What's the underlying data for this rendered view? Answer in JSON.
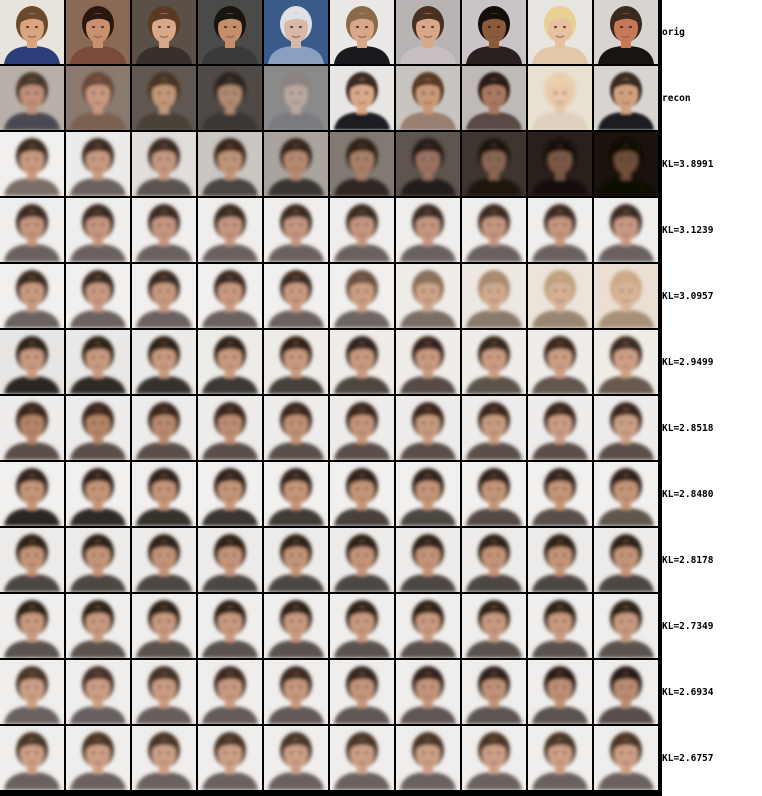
{
  "row_labels": [
    "orig",
    "recon",
    "KL=3.8991",
    "KL=3.1239",
    "KL=3.0957",
    "KL=2.9499",
    "KL=2.8518",
    "KL=2.8480",
    "KL=2.8178",
    "KL=2.7349",
    "KL=2.6934",
    "KL=2.6757"
  ],
  "rows": [
    {
      "kind": "photo",
      "tiles": [
        {
          "bg": "#e8e4dc",
          "skin": "#d9a47e",
          "hair": "#6a4a2a",
          "shirt": "#2d3f7a",
          "blur": 0
        },
        {
          "bg": "#8a6a55",
          "skin": "#c89070",
          "hair": "#2a1810",
          "shirt": "#7a4a3a",
          "blur": 0
        },
        {
          "bg": "#5a5048",
          "skin": "#d8a888",
          "hair": "#5a3a22",
          "shirt": "#3a302a",
          "blur": 0
        },
        {
          "bg": "#4a4a48",
          "skin": "#c48e6a",
          "hair": "#1a1410",
          "shirt": "#3a3a3a",
          "blur": 0
        },
        {
          "bg": "#3a5a8a",
          "skin": "#d8b8a8",
          "hair": "#e0e0e4",
          "shirt": "#8aa0c0",
          "blur": 0
        },
        {
          "bg": "#eae8e6",
          "skin": "#d8a888",
          "hair": "#8a6a48",
          "shirt": "#1a1a1e",
          "blur": 0
        },
        {
          "bg": "#b8b4b4",
          "skin": "#d8a888",
          "hair": "#4a3020",
          "shirt": "#c8c0c0",
          "blur": 0
        },
        {
          "bg": "#cac4c8",
          "skin": "#8a5a3a",
          "hair": "#140e0a",
          "shirt": "#2a2020",
          "blur": 0
        },
        {
          "bg": "#e8e4e0",
          "skin": "#e8c0a0",
          "hair": "#e8d090",
          "shirt": "#e0c8a8",
          "blur": 0
        },
        {
          "bg": "#d8d4d0",
          "skin": "#c87858",
          "hair": "#3a2a1e",
          "shirt": "#1a1410",
          "blur": 0
        }
      ]
    },
    {
      "kind": "recon",
      "tiles": [
        {
          "bg": "#b8b0a8",
          "skin": "#c09078",
          "hair": "#4a382c",
          "shirt": "#4a4a52",
          "blur": 1.6
        },
        {
          "bg": "#8a7a70",
          "skin": "#c89880",
          "hair": "#6a4a38",
          "shirt": "#7a6050",
          "blur": 1.6
        },
        {
          "bg": "#605850",
          "skin": "#c09878",
          "hair": "#4a3428",
          "shirt": "#4a4038",
          "blur": 1.6
        },
        {
          "bg": "#504a46",
          "skin": "#b08a70",
          "hair": "#2a221c",
          "shirt": "#3a3634",
          "blur": 1.8
        },
        {
          "bg": "#8a8a8a",
          "skin": "#b8a8a0",
          "hair": "#8a8280",
          "shirt": "#7a7a80",
          "blur": 1.8
        },
        {
          "bg": "#e8e6e4",
          "skin": "#d8a888",
          "hair": "#3a2a22",
          "shirt": "#1a1a22",
          "blur": 1.2
        },
        {
          "bg": "#c8c4c0",
          "skin": "#c89878",
          "hair": "#5a3a28",
          "shirt": "#9a8070",
          "blur": 1.4
        },
        {
          "bg": "#c0bab6",
          "skin": "#a87860",
          "hair": "#2a1c16",
          "shirt": "#5a4a44",
          "blur": 1.4
        },
        {
          "bg": "#e8e0d0",
          "skin": "#e8c8a8",
          "hair": "#e8d0b0",
          "shirt": "#e0d0c0",
          "blur": 1.6
        },
        {
          "bg": "#d8d4d0",
          "skin": "#d0a080",
          "hair": "#3a2c22",
          "shirt": "#1e1e24",
          "blur": 1.4
        }
      ]
    },
    {
      "kind": "sample",
      "tiles": [
        {
          "bg": "#f2f0ee",
          "skin": "#c89a80",
          "hair": "#3a2a20",
          "shirt": "#7a6e68",
          "blur": 1.8
        },
        {
          "bg": "#ecebe9",
          "skin": "#c89a80",
          "hair": "#3a2a20",
          "shirt": "#6a625e",
          "blur": 1.8
        },
        {
          "bg": "#e0ddda",
          "skin": "#c49880",
          "hair": "#3a2a20",
          "shirt": "#5a5250",
          "blur": 1.8
        },
        {
          "bg": "#cac6c2",
          "skin": "#c09478",
          "hair": "#38281e",
          "shirt": "#4a4440",
          "blur": 1.8
        },
        {
          "bg": "#aaa49e",
          "skin": "#b48a70",
          "hair": "#34261c",
          "shirt": "#3a3430",
          "blur": 1.8
        },
        {
          "bg": "#827a72",
          "skin": "#a88068",
          "hair": "#2e2218",
          "shirt": "#2e2824",
          "blur": 1.8
        },
        {
          "bg": "#5e564e",
          "skin": "#9a7260",
          "hair": "#281c14",
          "shirt": "#241e1a",
          "blur": 1.8
        },
        {
          "bg": "#3e362e",
          "skin": "#8a6652",
          "hair": "#1e1610",
          "shirt": "#1a1410",
          "blur": 1.8
        },
        {
          "bg": "#28201a",
          "skin": "#7a5844",
          "hair": "#16100a",
          "shirt": "#120e0a",
          "blur": 1.8
        },
        {
          "bg": "#1a120c",
          "skin": "#6e4e3a",
          "hair": "#0e0a06",
          "shirt": "#0a0806",
          "blur": 1.8
        }
      ]
    },
    {
      "kind": "sample",
      "tiles": [
        {
          "bg": "#f0eeec",
          "skin": "#c49680",
          "hair": "#3a2a22",
          "shirt": "#6a6260",
          "blur": 1.8
        },
        {
          "bg": "#f0eeec",
          "skin": "#c49680",
          "hair": "#3a2a22",
          "shirt": "#6a6260",
          "blur": 1.8
        },
        {
          "bg": "#f0eeec",
          "skin": "#c49680",
          "hair": "#3a2a22",
          "shirt": "#6a6260",
          "blur": 1.8
        },
        {
          "bg": "#f0eeec",
          "skin": "#c49680",
          "hair": "#3a2a22",
          "shirt": "#6a6260",
          "blur": 1.8
        },
        {
          "bg": "#f0eeec",
          "skin": "#c49680",
          "hair": "#3a2a22",
          "shirt": "#6a6260",
          "blur": 1.8
        },
        {
          "bg": "#f0eeec",
          "skin": "#c49680",
          "hair": "#3a2a22",
          "shirt": "#6a6260",
          "blur": 1.8
        },
        {
          "bg": "#f0eeec",
          "skin": "#c49680",
          "hair": "#3a2a22",
          "shirt": "#6a6260",
          "blur": 1.8
        },
        {
          "bg": "#f0eeec",
          "skin": "#c49680",
          "hair": "#3a2a22",
          "shirt": "#6a6260",
          "blur": 1.8
        },
        {
          "bg": "#f0eeec",
          "skin": "#c49680",
          "hair": "#3a2a22",
          "shirt": "#6a6260",
          "blur": 1.8
        },
        {
          "bg": "#f0eeec",
          "skin": "#c89a84",
          "hair": "#3a2a22",
          "shirt": "#6a6260",
          "blur": 1.8
        }
      ]
    },
    {
      "kind": "sample",
      "tiles": [
        {
          "bg": "#f2f0ee",
          "skin": "#c89a80",
          "hair": "#3a2a20",
          "shirt": "#6a6260",
          "blur": 1.8
        },
        {
          "bg": "#f2f0ee",
          "skin": "#c89a80",
          "hair": "#3a2a20",
          "shirt": "#6a6260",
          "blur": 1.8
        },
        {
          "bg": "#f2f0ee",
          "skin": "#c89a80",
          "hair": "#3a2a20",
          "shirt": "#6a6260",
          "blur": 1.8
        },
        {
          "bg": "#f2f0ee",
          "skin": "#c89a80",
          "hair": "#3a2a20",
          "shirt": "#6a6260",
          "blur": 1.8
        },
        {
          "bg": "#f2f0ee",
          "skin": "#c89a80",
          "hair": "#3e2c20",
          "shirt": "#6a6260",
          "blur": 1.8
        },
        {
          "bg": "#f2f0ee",
          "skin": "#caa084",
          "hair": "#6a5040",
          "shirt": "#6e6662",
          "blur": 1.8
        },
        {
          "bg": "#f0ece8",
          "skin": "#cca48a",
          "hair": "#8a6e58",
          "shirt": "#7a6e66",
          "blur": 1.8
        },
        {
          "bg": "#eee8e2",
          "skin": "#d0aa8e",
          "hair": "#a88a70",
          "shirt": "#8a7a6c",
          "blur": 1.8
        },
        {
          "bg": "#ece4da",
          "skin": "#d6b094",
          "hair": "#c0a080",
          "shirt": "#9a8672",
          "blur": 1.8
        },
        {
          "bg": "#eadfd2",
          "skin": "#dab498",
          "hair": "#ccaa88",
          "shirt": "#a89078",
          "blur": 1.8
        }
      ]
    },
    {
      "kind": "sample",
      "tiles": [
        {
          "bg": "#e8e6e4",
          "skin": "#c89a80",
          "hair": "#2e2218",
          "shirt": "#2a2624",
          "blur": 1.8
        },
        {
          "bg": "#eae8e6",
          "skin": "#c89a80",
          "hair": "#2e2218",
          "shirt": "#2e2a28",
          "blur": 1.8
        },
        {
          "bg": "#eceae8",
          "skin": "#c89a80",
          "hair": "#2e2218",
          "shirt": "#36302e",
          "blur": 1.8
        },
        {
          "bg": "#eeece8",
          "skin": "#c89a80",
          "hair": "#2e2218",
          "shirt": "#3e3834",
          "blur": 1.8
        },
        {
          "bg": "#efece8",
          "skin": "#c89a80",
          "hair": "#302218",
          "shirt": "#46403a",
          "blur": 1.8
        },
        {
          "bg": "#f0ece8",
          "skin": "#c89a80",
          "hair": "#32241a",
          "shirt": "#4e4640",
          "blur": 1.8
        },
        {
          "bg": "#f0ece8",
          "skin": "#c89a80",
          "hair": "#34241a",
          "shirt": "#564c46",
          "blur": 1.8
        },
        {
          "bg": "#f0ece8",
          "skin": "#ca9c82",
          "hair": "#36261c",
          "shirt": "#5c524a",
          "blur": 1.8
        },
        {
          "bg": "#f0ece8",
          "skin": "#cc9e84",
          "hair": "#3a281e",
          "shirt": "#62564e",
          "blur": 1.8
        },
        {
          "bg": "#f0ece6",
          "skin": "#cea086",
          "hair": "#3e2c20",
          "shirt": "#685a50",
          "blur": 1.8
        }
      ]
    },
    {
      "kind": "sample",
      "tiles": [
        {
          "bg": "#eeeceb",
          "skin": "#b48468",
          "hair": "#3a281c",
          "shirt": "#5a504a",
          "blur": 1.8
        },
        {
          "bg": "#eeeceb",
          "skin": "#b48468",
          "hair": "#3a281c",
          "shirt": "#5a504a",
          "blur": 1.8
        },
        {
          "bg": "#eeeceb",
          "skin": "#b88a6e",
          "hair": "#3a281c",
          "shirt": "#5a504a",
          "blur": 1.8
        },
        {
          "bg": "#eeeceb",
          "skin": "#bc8e72",
          "hair": "#3a281c",
          "shirt": "#5a504a",
          "blur": 1.8
        },
        {
          "bg": "#eeeceb",
          "skin": "#c09276",
          "hair": "#3a281c",
          "shirt": "#5a504a",
          "blur": 1.8
        },
        {
          "bg": "#eeeceb",
          "skin": "#c4967a",
          "hair": "#3a281c",
          "shirt": "#5a504a",
          "blur": 1.8
        },
        {
          "bg": "#eeeceb",
          "skin": "#c69a7e",
          "hair": "#3a281c",
          "shirt": "#5a504a",
          "blur": 1.8
        },
        {
          "bg": "#eeeceb",
          "skin": "#c89c80",
          "hair": "#3a281c",
          "shirt": "#5a504a",
          "blur": 1.8
        },
        {
          "bg": "#eeeceb",
          "skin": "#ca9e84",
          "hair": "#3a281c",
          "shirt": "#5a504a",
          "blur": 1.8
        },
        {
          "bg": "#eeeceb",
          "skin": "#cca086",
          "hair": "#3a281c",
          "shirt": "#5a504a",
          "blur": 1.8
        }
      ]
    },
    {
      "kind": "sample",
      "tiles": [
        {
          "bg": "#f2f0ee",
          "skin": "#c49478",
          "hair": "#32241a",
          "shirt": "#2a2624",
          "blur": 1.8
        },
        {
          "bg": "#f2f0ee",
          "skin": "#c49478",
          "hair": "#32241a",
          "shirt": "#2e2a28",
          "blur": 1.8
        },
        {
          "bg": "#f2f0ee",
          "skin": "#c49478",
          "hair": "#32241a",
          "shirt": "#34302c",
          "blur": 1.8
        },
        {
          "bg": "#f2f0ee",
          "skin": "#c49478",
          "hair": "#32241a",
          "shirt": "#3a3430",
          "blur": 1.8
        },
        {
          "bg": "#f2f0ee",
          "skin": "#c49478",
          "hair": "#32241a",
          "shirt": "#403a36",
          "blur": 1.8
        },
        {
          "bg": "#f2f0ee",
          "skin": "#c49478",
          "hair": "#32241a",
          "shirt": "#46403a",
          "blur": 1.8
        },
        {
          "bg": "#f2f0ee",
          "skin": "#c49478",
          "hair": "#32241a",
          "shirt": "#4c4640",
          "blur": 1.8
        },
        {
          "bg": "#f2f0ee",
          "skin": "#c49478",
          "hair": "#32241a",
          "shirt": "#524a44",
          "blur": 1.8
        },
        {
          "bg": "#f2f0ee",
          "skin": "#c49478",
          "hair": "#32241a",
          "shirt": "#585048",
          "blur": 1.8
        },
        {
          "bg": "#f2f0ee",
          "skin": "#c49478",
          "hair": "#32241a",
          "shirt": "#5e564e",
          "blur": 1.8
        }
      ]
    },
    {
      "kind": "sample",
      "tiles": [
        {
          "bg": "#eeeceb",
          "skin": "#c49478",
          "hair": "#2e2218",
          "shirt": "#4e4642",
          "blur": 1.8
        },
        {
          "bg": "#eeeceb",
          "skin": "#c49478",
          "hair": "#2e2218",
          "shirt": "#4e4642",
          "blur": 1.8
        },
        {
          "bg": "#eeeceb",
          "skin": "#c49478",
          "hair": "#2e2218",
          "shirt": "#4e4642",
          "blur": 1.8
        },
        {
          "bg": "#eeeceb",
          "skin": "#c49478",
          "hair": "#2e2218",
          "shirt": "#4e4642",
          "blur": 1.8
        },
        {
          "bg": "#eeeceb",
          "skin": "#c49478",
          "hair": "#2e2218",
          "shirt": "#4e4642",
          "blur": 1.8
        },
        {
          "bg": "#eeeceb",
          "skin": "#c49478",
          "hair": "#2e2218",
          "shirt": "#4e4642",
          "blur": 1.8
        },
        {
          "bg": "#eeeceb",
          "skin": "#c49478",
          "hair": "#2e2218",
          "shirt": "#4e4642",
          "blur": 1.8
        },
        {
          "bg": "#eeeceb",
          "skin": "#c49478",
          "hair": "#2e2218",
          "shirt": "#4e4642",
          "blur": 1.8
        },
        {
          "bg": "#eeeceb",
          "skin": "#c49478",
          "hair": "#2e2218",
          "shirt": "#4e4642",
          "blur": 1.8
        },
        {
          "bg": "#eeeceb",
          "skin": "#c49478",
          "hair": "#2e2218",
          "shirt": "#4e4642",
          "blur": 1.8
        }
      ]
    },
    {
      "kind": "sample",
      "tiles": [
        {
          "bg": "#f0eeec",
          "skin": "#c89a80",
          "hair": "#2e2218",
          "shirt": "#5a524e",
          "blur": 1.8
        },
        {
          "bg": "#f0eeec",
          "skin": "#c89a80",
          "hair": "#2e2218",
          "shirt": "#5a524e",
          "blur": 1.8
        },
        {
          "bg": "#f0eeec",
          "skin": "#c89a80",
          "hair": "#2e2218",
          "shirt": "#5a524e",
          "blur": 1.8
        },
        {
          "bg": "#f0eeec",
          "skin": "#c89a80",
          "hair": "#2e2218",
          "shirt": "#5a524e",
          "blur": 1.8
        },
        {
          "bg": "#f0eeec",
          "skin": "#c89a80",
          "hair": "#2e2218",
          "shirt": "#5a524e",
          "blur": 1.8
        },
        {
          "bg": "#f0eeec",
          "skin": "#c89a80",
          "hair": "#2e2218",
          "shirt": "#5a524e",
          "blur": 1.8
        },
        {
          "bg": "#f0eeec",
          "skin": "#c89a80",
          "hair": "#2e2218",
          "shirt": "#5a524e",
          "blur": 1.8
        },
        {
          "bg": "#f0eeec",
          "skin": "#c89a80",
          "hair": "#2e2218",
          "shirt": "#5a524e",
          "blur": 1.8
        },
        {
          "bg": "#f0eeec",
          "skin": "#c89a80",
          "hair": "#2e2218",
          "shirt": "#5a524e",
          "blur": 1.8
        },
        {
          "bg": "#f0eeec",
          "skin": "#c89a80",
          "hair": "#2e2218",
          "shirt": "#5a524e",
          "blur": 1.8
        }
      ]
    },
    {
      "kind": "sample",
      "tiles": [
        {
          "bg": "#f0eeec",
          "skin": "#cca086",
          "hair": "#4a3628",
          "shirt": "#6a6260",
          "blur": 1.8
        },
        {
          "bg": "#f0eeec",
          "skin": "#cc9e84",
          "hair": "#46322a",
          "shirt": "#686060",
          "blur": 1.8
        },
        {
          "bg": "#f0eeec",
          "skin": "#ca9c82",
          "hair": "#423028",
          "shirt": "#665e5c",
          "blur": 1.8
        },
        {
          "bg": "#f0eeec",
          "skin": "#c89a80",
          "hair": "#3e2c24",
          "shirt": "#645c5a",
          "blur": 1.8
        },
        {
          "bg": "#f0eeec",
          "skin": "#c6987e",
          "hair": "#3a2a22",
          "shirt": "#625a58",
          "blur": 1.8
        },
        {
          "bg": "#f0eeec",
          "skin": "#c4967c",
          "hair": "#362820",
          "shirt": "#605856",
          "blur": 1.8
        },
        {
          "bg": "#f0eeec",
          "skin": "#c2947a",
          "hair": "#32241c",
          "shirt": "#5e5654",
          "blur": 1.8
        },
        {
          "bg": "#f0eeec",
          "skin": "#c09278",
          "hair": "#2e221a",
          "shirt": "#5c5452",
          "blur": 1.8
        },
        {
          "bg": "#f0eeec",
          "skin": "#be9076",
          "hair": "#2a1e18",
          "shirt": "#5a5250",
          "blur": 1.8
        },
        {
          "bg": "#f0eeec",
          "skin": "#ba8c72",
          "hair": "#261c16",
          "shirt": "#58504e",
          "blur": 1.8
        }
      ]
    },
    {
      "kind": "sample",
      "tiles": [
        {
          "bg": "#f0eeec",
          "skin": "#cca086",
          "hair": "#4a3628",
          "shirt": "#6a6260",
          "blur": 1.8
        },
        {
          "bg": "#f0eeec",
          "skin": "#cca086",
          "hair": "#4a3628",
          "shirt": "#6a6260",
          "blur": 1.8
        },
        {
          "bg": "#f0eeec",
          "skin": "#cca086",
          "hair": "#4a3628",
          "shirt": "#6a6260",
          "blur": 1.8
        },
        {
          "bg": "#f0eeec",
          "skin": "#cca086",
          "hair": "#4a3628",
          "shirt": "#6a6260",
          "blur": 1.8
        },
        {
          "bg": "#f0eeec",
          "skin": "#cca086",
          "hair": "#4a3628",
          "shirt": "#6a6260",
          "blur": 1.8
        },
        {
          "bg": "#f0eeec",
          "skin": "#cca086",
          "hair": "#4a3628",
          "shirt": "#6a6260",
          "blur": 1.8
        },
        {
          "bg": "#f0eeec",
          "skin": "#cca086",
          "hair": "#4a3628",
          "shirt": "#6a6260",
          "blur": 1.8
        },
        {
          "bg": "#f0eeec",
          "skin": "#cca086",
          "hair": "#4a3628",
          "shirt": "#6a6260",
          "blur": 1.8
        },
        {
          "bg": "#f0eeec",
          "skin": "#cca086",
          "hair": "#4a3628",
          "shirt": "#6a6260",
          "blur": 1.8
        },
        {
          "bg": "#f0eeec",
          "skin": "#cca086",
          "hair": "#4a3628",
          "shirt": "#6a6260",
          "blur": 1.8
        }
      ]
    }
  ]
}
